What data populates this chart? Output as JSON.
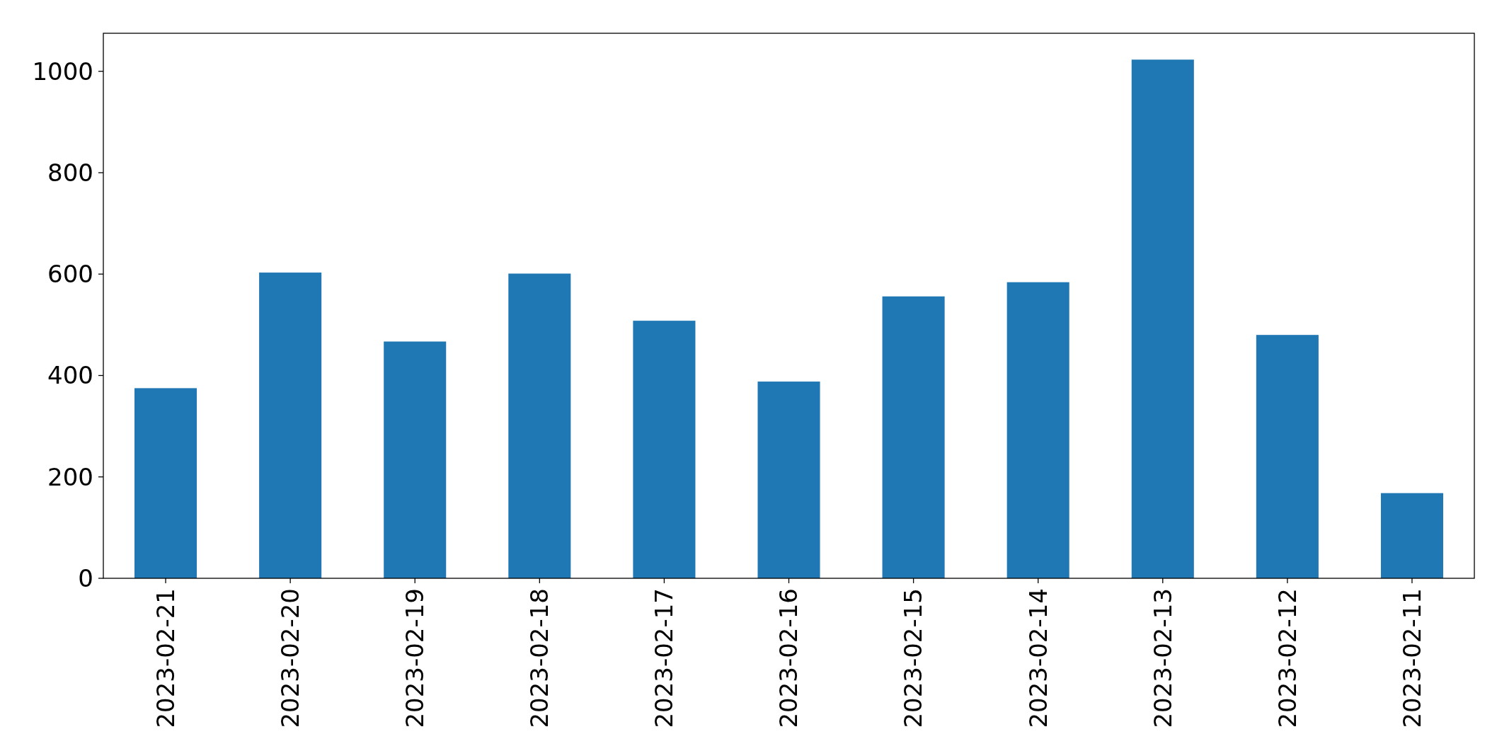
{
  "chart_data": {
    "type": "bar",
    "categories": [
      "2023-02-21",
      "2023-02-20",
      "2023-02-19",
      "2023-02-18",
      "2023-02-17",
      "2023-02-16",
      "2023-02-15",
      "2023-02-14",
      "2023-02-13",
      "2023-02-12",
      "2023-02-11"
    ],
    "values": [
      375,
      603,
      467,
      601,
      508,
      388,
      556,
      584,
      1023,
      480,
      168
    ],
    "color": "#1f77b4",
    "ylim": [
      0,
      1075
    ],
    "yticks": [
      0,
      200,
      400,
      600,
      800,
      1000
    ],
    "grid": false
  }
}
